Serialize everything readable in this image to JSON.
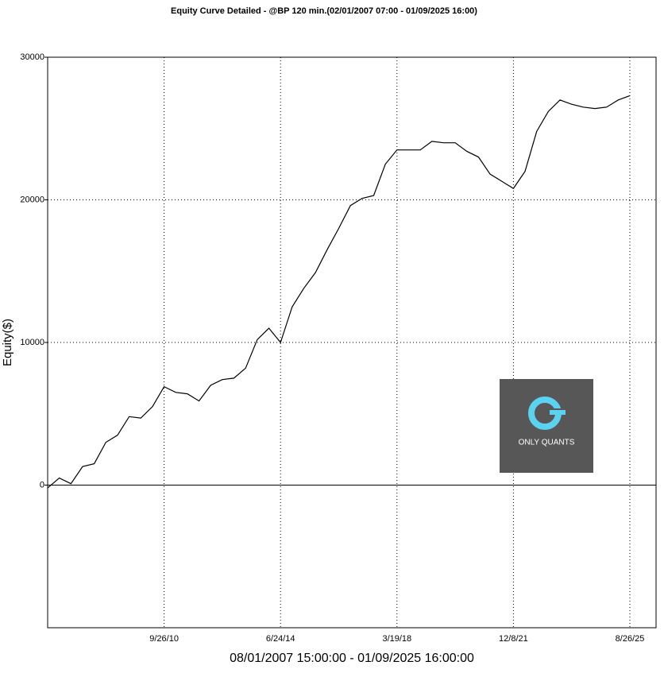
{
  "chart_data": {
    "type": "line",
    "title": "Equity Curve Detailed - @BP 120 min.(02/01/2007 07:00 - 01/09/2025 16:00)",
    "x_label": "08/01/2007 15:00:00 - 01/09/2025 16:00:00",
    "y_label": "Equity($)",
    "categories": [
      null,
      null,
      null,
      null,
      null,
      null,
      null,
      null,
      null,
      null,
      "9/26/10",
      null,
      null,
      null,
      null,
      null,
      null,
      null,
      null,
      null,
      "6/24/14",
      null,
      null,
      null,
      null,
      null,
      null,
      null,
      null,
      null,
      "3/19/18",
      null,
      null,
      null,
      null,
      null,
      null,
      null,
      null,
      null,
      "12/8/21",
      null,
      null,
      null,
      null,
      null,
      null,
      null,
      null,
      null,
      "8/26/25"
    ],
    "series": [
      {
        "name": "Equity",
        "color": "#000000",
        "values": [
          -200,
          500,
          100,
          1300,
          1500,
          3000,
          3500,
          4800,
          4700,
          5500,
          6900,
          6500,
          6400,
          5900,
          7000,
          7400,
          7500,
          8200,
          10200,
          11000,
          10000,
          12500,
          13800,
          14900,
          16500,
          18000,
          19600,
          20100,
          20300,
          22500,
          23500,
          23500,
          23500,
          24100,
          24000,
          24000,
          23400,
          23000,
          21800,
          21300,
          20800,
          22000,
          24800,
          26200,
          27000,
          26700,
          26500,
          26400,
          26500,
          27000,
          27300
        ]
      }
    ],
    "ylim": [
      -10000,
      30000
    ],
    "yticks": [
      0,
      10000,
      20000,
      30000
    ],
    "grid": true
  },
  "watermark": "ONLY QUANTS"
}
